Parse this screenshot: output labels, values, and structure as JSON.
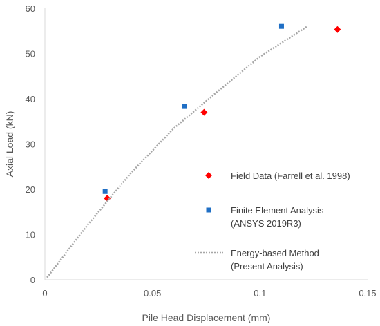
{
  "chart_data": {
    "type": "scatter",
    "xlabel": "Pile Head Displacement (mm)",
    "ylabel": "Axial Load (kN)",
    "xlim": [
      0,
      0.15
    ],
    "ylim": [
      0,
      60
    ],
    "x_ticks": [
      "0",
      "0.05",
      "0.1",
      "0.15"
    ],
    "y_ticks": [
      "0",
      "10",
      "20",
      "30",
      "40",
      "50",
      "60"
    ],
    "grid": false,
    "legend_position": "right",
    "series": [
      {
        "name": "Field Data (Farrell et al. 1998)",
        "marker": "diamond",
        "color": "#ff0000",
        "x": [
          0.029,
          0.074,
          0.136
        ],
        "y": [
          18,
          37,
          55.3
        ]
      },
      {
        "name": "Finite Element Analysis (ANSYS 2019R3)",
        "name_lines": [
          "Finite Element Analysis",
          "(ANSYS 2019R3)"
        ],
        "marker": "square",
        "color": "#1f6fc5",
        "x": [
          0.028,
          0.065,
          0.11
        ],
        "y": [
          19.5,
          38.3,
          56
        ]
      },
      {
        "name": "Energy-based Method (Present Analysis)",
        "name_lines": [
          "Energy-based Method",
          "(Present Analysis)"
        ],
        "marker": "dotted-line",
        "color": "#a6a6a6",
        "x": [
          0.001,
          0.02,
          0.04,
          0.06,
          0.08,
          0.1,
          0.122
        ],
        "y": [
          0.5,
          12.2,
          23.6,
          33.5,
          41.5,
          49.3,
          56
        ]
      }
    ]
  }
}
